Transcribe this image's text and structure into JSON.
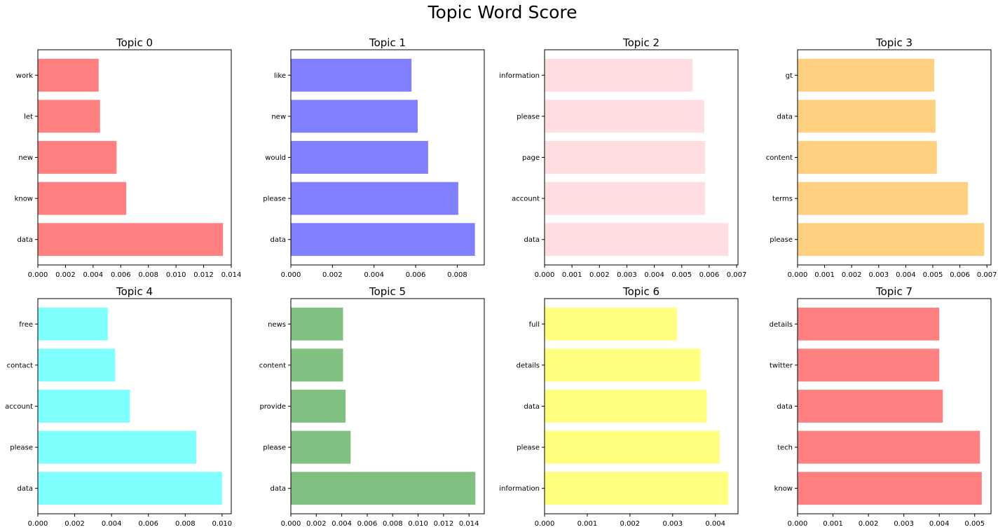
{
  "figure": {
    "title": "Topic Word Score"
  },
  "chart_data": [
    {
      "type": "bar",
      "orientation": "horizontal",
      "title": "Topic 0",
      "color": "#ff8080",
      "categories": [
        "data",
        "know",
        "new",
        "let",
        "work"
      ],
      "values": [
        0.0134,
        0.0064,
        0.0057,
        0.0045,
        0.0044
      ],
      "xlim": [
        0,
        0.014
      ],
      "xticks": [
        "0.000",
        "0.002",
        "0.004",
        "0.006",
        "0.008",
        "0.010",
        "0.012",
        "0.014"
      ]
    },
    {
      "type": "bar",
      "orientation": "horizontal",
      "title": "Topic 1",
      "color": "#8080ff",
      "categories": [
        "data",
        "please",
        "would",
        "new",
        "like"
      ],
      "values": [
        0.00885,
        0.00805,
        0.0066,
        0.0061,
        0.0058
      ],
      "xlim": [
        0,
        0.0093
      ],
      "xticks": [
        "0.000",
        "0.002",
        "0.004",
        "0.006",
        "0.008"
      ]
    },
    {
      "type": "bar",
      "orientation": "horizontal",
      "title": "Topic 2",
      "color": "#ffdde1",
      "categories": [
        "data",
        "account",
        "page",
        "please",
        "information"
      ],
      "values": [
        0.0067,
        0.00585,
        0.00585,
        0.00582,
        0.0054
      ],
      "xlim": [
        0,
        0.00705
      ],
      "xticks": [
        "0.000",
        "0.001",
        "0.002",
        "0.003",
        "0.004",
        "0.005",
        "0.006",
        "0.007"
      ]
    },
    {
      "type": "bar",
      "orientation": "horizontal",
      "title": "Topic 3",
      "color": "#ffd080",
      "categories": [
        "please",
        "terms",
        "content",
        "data",
        "gt"
      ],
      "values": [
        0.0069,
        0.0063,
        0.00515,
        0.0051,
        0.00505
      ],
      "xlim": [
        0,
        0.00715
      ],
      "xticks": [
        "0.000",
        "0.001",
        "0.002",
        "0.003",
        "0.004",
        "0.005",
        "0.006",
        "0.007"
      ]
    },
    {
      "type": "bar",
      "orientation": "horizontal",
      "title": "Topic 4",
      "color": "#80ffff",
      "categories": [
        "data",
        "please",
        "account",
        "contact",
        "free"
      ],
      "values": [
        0.01,
        0.0086,
        0.005,
        0.0042,
        0.0038
      ],
      "xlim": [
        0,
        0.0105
      ],
      "xticks": [
        "0.000",
        "0.002",
        "0.004",
        "0.006",
        "0.008",
        "0.010"
      ]
    },
    {
      "type": "bar",
      "orientation": "horizontal",
      "title": "Topic 5",
      "color": "#80c080",
      "categories": [
        "data",
        "please",
        "provide",
        "content",
        "news"
      ],
      "values": [
        0.0145,
        0.0047,
        0.0043,
        0.0041,
        0.0041
      ],
      "xlim": [
        0,
        0.0152
      ],
      "xticks": [
        "0.000",
        "0.002",
        "0.004",
        "0.006",
        "0.008",
        "0.010",
        "0.012",
        "0.014"
      ]
    },
    {
      "type": "bar",
      "orientation": "horizontal",
      "title": "Topic 6",
      "color": "#ffff80",
      "categories": [
        "information",
        "please",
        "data",
        "details",
        "full"
      ],
      "values": [
        0.0043,
        0.0041,
        0.0038,
        0.00365,
        0.0031
      ],
      "xlim": [
        0,
        0.00453
      ],
      "xticks": [
        "0.000",
        "0.001",
        "0.002",
        "0.003",
        "0.004"
      ]
    },
    {
      "type": "bar",
      "orientation": "horizontal",
      "title": "Topic 7",
      "color": "#ff8080",
      "categories": [
        "know",
        "tech",
        "data",
        "twitter",
        "details"
      ],
      "values": [
        0.0052,
        0.00515,
        0.0041,
        0.004,
        0.004
      ],
      "xlim": [
        0,
        0.00546
      ],
      "xticks": [
        "0.000",
        "0.001",
        "0.002",
        "0.003",
        "0.004",
        "0.005"
      ]
    }
  ]
}
